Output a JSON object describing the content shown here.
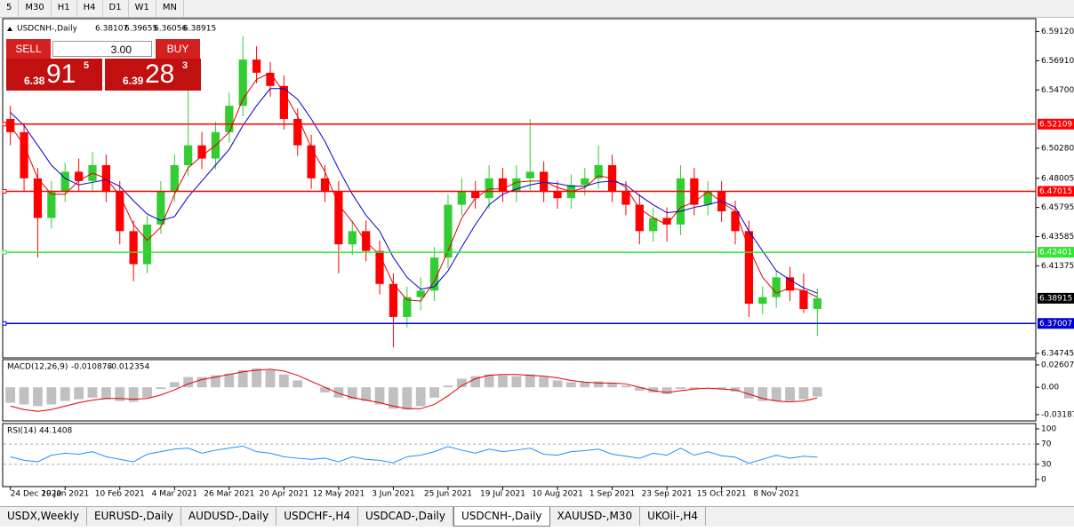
{
  "toolbar": {
    "timeframes": [
      "5",
      "M30",
      "H1",
      "H4",
      "D1",
      "W1",
      "MN"
    ]
  },
  "trade_panel": {
    "sell": {
      "label": "SELL",
      "prefix": "6.38",
      "big": "91",
      "small": "5"
    },
    "lot": "3.00",
    "buy": {
      "label": "BUY",
      "prefix": "6.39",
      "big": "28",
      "small": "3"
    }
  },
  "chart_data": [
    {
      "type": "candlestick",
      "title": "USDCNH-,Daily",
      "up_color": "#32cd32",
      "down_color": "#ff0000",
      "categories": [
        "24 Dec 2020",
        null,
        null,
        null,
        "19 Jan 2021",
        null,
        null,
        null,
        "10 Feb 2021",
        null,
        null,
        null,
        "4 Mar 2021",
        null,
        null,
        null,
        "26 Mar 2021",
        null,
        null,
        null,
        "20 Apr 2021",
        null,
        null,
        null,
        "12 May 2021",
        null,
        null,
        null,
        "3 Jun 2021",
        null,
        null,
        null,
        "25 Jun 2021",
        null,
        null,
        null,
        "19 Jul 2021",
        null,
        null,
        null,
        "10 Aug 2021",
        null,
        null,
        null,
        "1 Sep 2021",
        null,
        null,
        null,
        "23 Sep 2021",
        null,
        null,
        null,
        "15 Oct 2021",
        null,
        null,
        null,
        "8 Nov 2021",
        null,
        null,
        null
      ],
      "ohlc": [
        [
          6.525,
          6.535,
          6.505,
          6.515
        ],
        [
          6.515,
          6.522,
          6.47,
          6.48
        ],
        [
          6.48,
          6.488,
          6.42,
          6.45
        ],
        [
          6.45,
          6.478,
          6.442,
          6.47
        ],
        [
          6.47,
          6.492,
          6.462,
          6.485
        ],
        [
          6.485,
          6.495,
          6.47,
          6.478
        ],
        [
          6.478,
          6.5,
          6.47,
          6.49
        ],
        [
          6.49,
          6.498,
          6.462,
          6.47
        ],
        [
          6.47,
          6.478,
          6.43,
          6.44
        ],
        [
          6.44,
          6.448,
          6.402,
          6.415
        ],
        [
          6.415,
          6.452,
          6.408,
          6.445
        ],
        [
          6.445,
          6.478,
          6.438,
          6.47
        ],
        [
          6.47,
          6.498,
          6.462,
          6.49
        ],
        [
          6.49,
          6.558,
          6.482,
          6.505
        ],
        [
          6.505,
          6.515,
          6.487,
          6.495
        ],
        [
          6.495,
          6.523,
          6.487,
          6.515
        ],
        [
          6.515,
          6.545,
          6.507,
          6.535
        ],
        [
          6.535,
          6.588,
          6.527,
          6.57
        ],
        [
          6.57,
          6.58,
          6.552,
          6.56
        ],
        [
          6.56,
          6.568,
          6.542,
          6.55
        ],
        [
          6.55,
          6.558,
          6.517,
          6.525
        ],
        [
          6.525,
          6.533,
          6.497,
          6.505
        ],
        [
          6.505,
          6.513,
          6.472,
          6.48
        ],
        [
          6.48,
          6.49,
          6.462,
          6.47
        ],
        [
          6.47,
          6.478,
          6.408,
          6.43
        ],
        [
          6.43,
          6.448,
          6.422,
          6.44
        ],
        [
          6.44,
          6.448,
          6.417,
          6.425
        ],
        [
          6.425,
          6.433,
          6.392,
          6.4
        ],
        [
          6.4,
          6.408,
          6.352,
          6.375
        ],
        [
          6.375,
          6.398,
          6.367,
          6.39
        ],
        [
          6.39,
          6.405,
          6.38,
          6.395
        ],
        [
          6.395,
          6.428,
          6.387,
          6.42
        ],
        [
          6.42,
          6.468,
          6.412,
          6.46
        ],
        [
          6.46,
          6.48,
          6.452,
          6.47
        ],
        [
          6.47,
          6.478,
          6.457,
          6.465
        ],
        [
          6.465,
          6.49,
          6.457,
          6.48
        ],
        [
          6.48,
          6.488,
          6.462,
          6.47
        ],
        [
          6.47,
          6.49,
          6.462,
          6.48
        ],
        [
          6.48,
          6.525,
          6.47,
          6.485
        ],
        [
          6.485,
          6.493,
          6.462,
          6.47
        ],
        [
          6.47,
          6.478,
          6.457,
          6.465
        ],
        [
          6.465,
          6.483,
          6.457,
          6.475
        ],
        [
          6.475,
          6.488,
          6.467,
          6.48
        ],
        [
          6.48,
          6.505,
          6.472,
          6.49
        ],
        [
          6.49,
          6.498,
          6.462,
          6.47
        ],
        [
          6.47,
          6.478,
          6.452,
          6.46
        ],
        [
          6.46,
          6.468,
          6.43,
          6.44
        ],
        [
          6.44,
          6.458,
          6.432,
          6.45
        ],
        [
          6.45,
          6.458,
          6.432,
          6.445
        ],
        [
          6.445,
          6.49,
          6.437,
          6.48
        ],
        [
          6.48,
          6.488,
          6.452,
          6.46
        ],
        [
          6.46,
          6.478,
          6.452,
          6.47
        ],
        [
          6.47,
          6.478,
          6.447,
          6.455
        ],
        [
          6.455,
          6.463,
          6.43,
          6.44
        ],
        [
          6.44,
          6.448,
          6.375,
          6.385
        ],
        [
          6.385,
          6.398,
          6.377,
          6.39
        ],
        [
          6.39,
          6.41,
          6.382,
          6.405
        ],
        [
          6.405,
          6.413,
          6.387,
          6.395
        ],
        [
          6.395,
          6.408,
          6.378,
          6.381
        ],
        [
          6.38107,
          6.39655,
          6.36056,
          6.38915
        ]
      ],
      "ma_lines": [
        {
          "color": "#e00000",
          "values": [
            6.52,
            6.505,
            6.48,
            6.468,
            6.468,
            6.478,
            6.484,
            6.48,
            6.467,
            6.445,
            6.433,
            6.443,
            6.468,
            6.488,
            6.497,
            6.505,
            6.515,
            6.54,
            6.555,
            6.56,
            6.545,
            6.527,
            6.503,
            6.485,
            6.46,
            6.447,
            6.432,
            6.422,
            6.4,
            6.388,
            6.387,
            6.402,
            6.425,
            6.45,
            6.465,
            6.472,
            6.472,
            6.477,
            6.478,
            6.478,
            6.473,
            6.47,
            6.473,
            6.482,
            6.48,
            6.473,
            6.457,
            6.45,
            6.445,
            6.458,
            6.462,
            6.47,
            6.462,
            6.455,
            6.427,
            6.405,
            6.393,
            6.397,
            6.395,
            6.39
          ]
        },
        {
          "color": "#0000cc",
          "values": [
            6.53,
            6.52,
            6.505,
            6.49,
            6.48,
            6.475,
            6.477,
            6.479,
            6.474,
            6.463,
            6.453,
            6.448,
            6.451,
            6.466,
            6.478,
            6.49,
            6.502,
            6.52,
            6.535,
            6.548,
            6.548,
            6.54,
            6.525,
            6.508,
            6.487,
            6.468,
            6.452,
            6.44,
            6.42,
            6.405,
            6.396,
            6.398,
            6.41,
            6.428,
            6.445,
            6.46,
            6.468,
            6.472,
            6.475,
            6.477,
            6.476,
            6.474,
            6.474,
            6.477,
            6.478,
            6.475,
            6.467,
            6.46,
            6.454,
            6.455,
            6.458,
            6.46,
            6.463,
            6.458,
            6.44,
            6.425,
            6.41,
            6.403,
            6.397,
            6.393
          ]
        }
      ],
      "levels": [
        {
          "value": 6.52109,
          "color": "#ff0000"
        },
        {
          "value": 6.47015,
          "color": "#ff0000"
        },
        {
          "value": 6.42401,
          "color": "#32e632"
        },
        {
          "value": 6.37007,
          "color": "#0000cc"
        }
      ],
      "ylim": [
        6.344,
        6.601
      ],
      "yticks": [
        {
          "value": 6.5912,
          "label": "6.59120"
        },
        {
          "value": 6.5691,
          "label": "6.56910"
        },
        {
          "value": 6.547,
          "label": "6.54700"
        },
        {
          "value": 6.5028,
          "label": "6.50280"
        },
        {
          "value": 6.48005,
          "label": "6.48005"
        },
        {
          "value": 6.45795,
          "label": "6.45795"
        },
        {
          "value": 6.43585,
          "label": "6.43585"
        },
        {
          "value": 6.41375,
          "label": "6.41375"
        },
        {
          "value": 6.34745,
          "label": "6.34745"
        }
      ]
    },
    {
      "type": "bar",
      "title": "MACD(12,26,9)",
      "color": "#c0c0c0",
      "values": [
        -0.018,
        -0.02,
        -0.022,
        -0.02,
        -0.016,
        -0.014,
        -0.012,
        -0.014,
        -0.016,
        -0.017,
        -0.012,
        -0.002,
        0.006,
        0.012,
        0.012,
        0.014,
        0.016,
        0.02,
        0.022,
        0.02,
        0.015,
        0.008,
        0.0,
        -0.006,
        -0.012,
        -0.014,
        -0.016,
        -0.02,
        -0.025,
        -0.026,
        -0.022,
        -0.012,
        0.002,
        0.01,
        0.013,
        0.015,
        0.014,
        0.013,
        0.015,
        0.012,
        0.008,
        0.006,
        0.006,
        0.007,
        0.005,
        0.002,
        -0.004,
        -0.006,
        -0.008,
        -0.002,
        -0.002,
        0.0,
        -0.002,
        -0.005,
        -0.013,
        -0.016,
        -0.016,
        -0.016,
        -0.014,
        -0.010878
      ],
      "signal": {
        "color": "#e00000",
        "values": [
          -0.022,
          -0.026,
          -0.028,
          -0.026,
          -0.022,
          -0.018,
          -0.015,
          -0.013,
          -0.013,
          -0.014,
          -0.013,
          -0.009,
          -0.003,
          0.004,
          0.009,
          0.012,
          0.015,
          0.018,
          0.02,
          0.021,
          0.019,
          0.014,
          0.007,
          0.0,
          -0.007,
          -0.012,
          -0.015,
          -0.018,
          -0.022,
          -0.025,
          -0.025,
          -0.02,
          -0.01,
          0.002,
          0.01,
          0.014,
          0.015,
          0.015,
          0.014,
          0.013,
          0.011,
          0.008,
          0.006,
          0.005,
          0.005,
          0.004,
          0.0,
          -0.004,
          -0.006,
          -0.004,
          -0.002,
          -0.001,
          -0.002,
          -0.003,
          -0.008,
          -0.013,
          -0.016,
          -0.017,
          -0.016,
          -0.012354
        ]
      },
      "ylim": [
        -0.0392,
        0.0323
      ],
      "yticks": [
        0.02607,
        {
          "value": 0,
          "label": "0.00"
        },
        -0.031872
      ]
    },
    {
      "type": "line",
      "title": "RSI(14)",
      "color": "#1e90ff",
      "values": [
        45,
        38,
        35,
        48,
        52,
        50,
        55,
        45,
        40,
        35,
        50,
        55,
        60,
        62,
        52,
        58,
        62,
        66,
        55,
        52,
        45,
        42,
        40,
        42,
        35,
        45,
        40,
        38,
        33,
        45,
        48,
        55,
        65,
        58,
        52,
        60,
        55,
        58,
        62,
        50,
        48,
        55,
        57,
        60,
        50,
        46,
        42,
        52,
        48,
        62,
        48,
        55,
        47,
        44,
        32,
        40,
        48,
        42,
        46,
        44.1408
      ],
      "ylim": [
        -14,
        110.5
      ],
      "yticks": [
        100,
        70,
        30,
        0
      ],
      "level_lines": [
        70,
        30
      ]
    }
  ],
  "tabs": [
    {
      "label": "USDX,Weekly"
    },
    {
      "label": "EURUSD-,Daily"
    },
    {
      "label": "AUDUSD-,Daily"
    },
    {
      "label": "USDCHF-,H4"
    },
    {
      "label": "USDCAD-,Daily"
    },
    {
      "label": "USDCNH-,Daily",
      "selected": true
    },
    {
      "label": "XAUUSD-,M30"
    },
    {
      "label": "UKOil-,H4"
    }
  ]
}
